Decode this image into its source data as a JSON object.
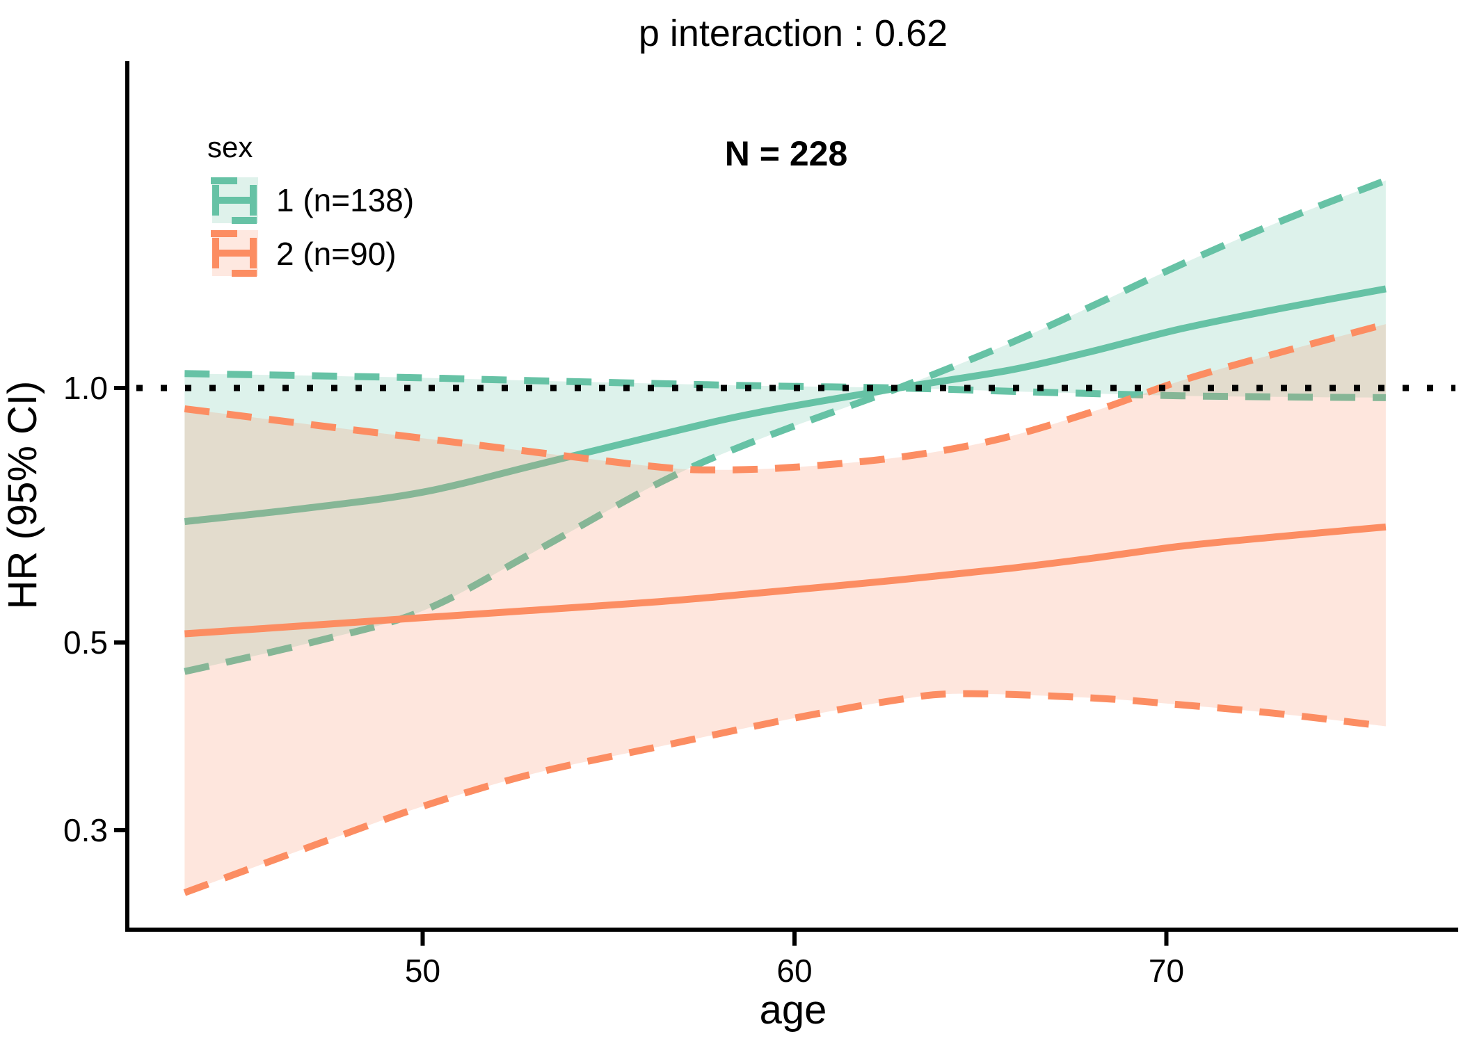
{
  "title": "p interaction : 0.62",
  "annotation": "N = 228",
  "legend": {
    "title": "sex",
    "items": [
      {
        "label": "1 (n=138)",
        "color": "#66C2A5",
        "fill": "#DFF2EB"
      },
      {
        "label": "2 (n=90)",
        "color": "#FC8D62",
        "fill": "#FEE8E0"
      }
    ]
  },
  "axes": {
    "x": {
      "label": "age",
      "ticks": [
        {
          "label": "50",
          "v": 50
        },
        {
          "label": "60",
          "v": 60
        },
        {
          "label": "70",
          "v": 70
        }
      ]
    },
    "y": {
      "label": "HR (95% CI)",
      "ticks": [
        {
          "label": "1.0",
          "v": 1.0
        },
        {
          "label": "0.5",
          "v": 0.5
        },
        {
          "label": "0.3",
          "v": 0.3
        }
      ]
    }
  },
  "reference_line": {
    "value": 1.0,
    "color": "#000000",
    "style": "dotted"
  },
  "chart_data": {
    "type": "line",
    "title": "p interaction : 0.62",
    "xlabel": "age",
    "ylabel": "HR (95% CI)",
    "y_scale": "log",
    "x_range": [
      43.6,
      75.9
    ],
    "y_tick_values": [
      0.3,
      0.5,
      1.0
    ],
    "x_tick_values": [
      50,
      60,
      70
    ],
    "grid": false,
    "legend_position": "top-left-inside",
    "series": [
      {
        "name": "1 (n=138)",
        "group": "sex = 1",
        "color": "#66C2A5",
        "band_fill": "#66C2A5",
        "center": [
          [
            43.6,
            0.695
          ],
          [
            47,
            0.722
          ],
          [
            50,
            0.753
          ],
          [
            53,
            0.81
          ],
          [
            56.4,
            0.881
          ],
          [
            59,
            0.935
          ],
          [
            62.8,
            1.0
          ],
          [
            65.8,
            1.05
          ],
          [
            68,
            1.105
          ],
          [
            70.4,
            1.175
          ],
          [
            73,
            1.24
          ],
          [
            75.9,
            1.31
          ]
        ],
        "ci_bounds": [
          [
            [
              43.6,
              1.04
            ],
            [
              47,
              1.034
            ],
            [
              50,
              1.028
            ],
            [
              53,
              1.02
            ],
            [
              56.4,
              1.012
            ],
            [
              59,
              1.006
            ],
            [
              62.8,
              1.0
            ],
            [
              65.8,
              0.991
            ],
            [
              68,
              0.985
            ],
            [
              70.4,
              0.979
            ],
            [
              73,
              0.976
            ],
            [
              75.9,
              0.974
            ]
          ],
          [
            [
              43.6,
              0.462
            ],
            [
              47,
              0.5
            ],
            [
              50,
              0.545
            ],
            [
              53,
              0.64
            ],
            [
              56.4,
              0.774
            ],
            [
              59,
              0.868
            ],
            [
              62.8,
              1.0
            ],
            [
              65.8,
              1.13
            ],
            [
              68,
              1.25
            ],
            [
              70.4,
              1.4
            ],
            [
              73,
              1.57
            ],
            [
              75.9,
              1.76
            ]
          ]
        ]
      },
      {
        "name": "2 (n=90)",
        "group": "sex = 2",
        "color": "#FC8D62",
        "band_fill": "#FC8D62",
        "center": [
          [
            43.6,
            0.512
          ],
          [
            47,
            0.524
          ],
          [
            50,
            0.535
          ],
          [
            53,
            0.546
          ],
          [
            56.4,
            0.559
          ],
          [
            59,
            0.572
          ],
          [
            62.8,
            0.593
          ],
          [
            65.8,
            0.612
          ],
          [
            68,
            0.629
          ],
          [
            70.4,
            0.65
          ],
          [
            73,
            0.667
          ],
          [
            75.9,
            0.685
          ]
        ],
        "ci_bounds": [
          [
            [
              43.6,
              0.945
            ],
            [
              47,
              0.905
            ],
            [
              50,
              0.872
            ],
            [
              53,
              0.84
            ],
            [
              56.4,
              0.806
            ],
            [
              58,
              0.8
            ],
            [
              60,
              0.806
            ],
            [
              62.8,
              0.828
            ],
            [
              65.4,
              0.868
            ],
            [
              68,
              0.937
            ],
            [
              70.4,
              1.02
            ],
            [
              73,
              1.1
            ],
            [
              75.9,
              1.19
            ]
          ],
          [
            [
              43.6,
              0.253
            ],
            [
              47,
              0.287
            ],
            [
              50,
              0.32
            ],
            [
              53,
              0.35
            ],
            [
              56.4,
              0.377
            ],
            [
              60,
              0.407
            ],
            [
              62.8,
              0.428
            ],
            [
              64.5,
              0.435
            ],
            [
              68,
              0.43
            ],
            [
              70.4,
              0.422
            ],
            [
              73,
              0.412
            ],
            [
              75.9,
              0.398
            ]
          ]
        ]
      }
    ]
  }
}
